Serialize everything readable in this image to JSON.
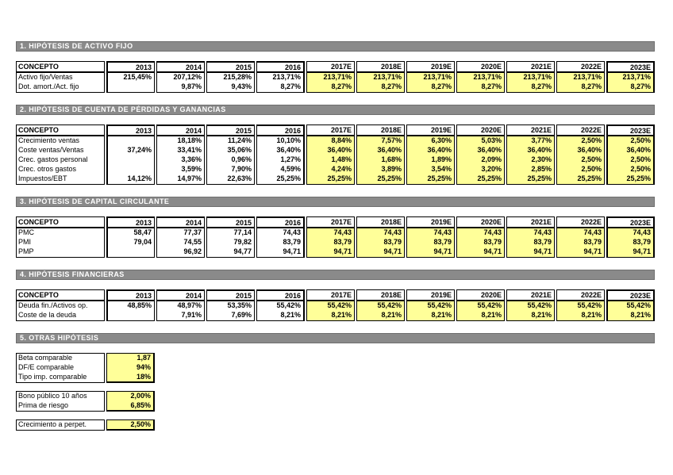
{
  "colors": {
    "estimate_bg": "#ffff99",
    "section_bar_bg": "#8a8a8a",
    "section_bar_text": "#ffffff",
    "grid_border": "#000000"
  },
  "columns": {
    "concept": "CONCEPTO",
    "years": [
      "2013",
      "2014",
      "2015",
      "2016",
      "2017E",
      "2018E",
      "2019E",
      "2020E",
      "2021E",
      "2022E",
      "2023E"
    ]
  },
  "sections": [
    {
      "title": "1. HIPÓTESIS DE ACTIVO FIJO",
      "rows": [
        {
          "label": "Activo fijo/Ventas",
          "values": [
            "215,45%",
            "207,12%",
            "215,28%",
            "213,71%",
            "213,71%",
            "213,71%",
            "213,71%",
            "213,71%",
            "213,71%",
            "213,71%",
            "213,71%"
          ]
        },
        {
          "label": "Dot. amort./Act. fijo",
          "values": [
            "",
            "9,87%",
            "9,43%",
            "8,27%",
            "8,27%",
            "8,27%",
            "8,27%",
            "8,27%",
            "8,27%",
            "8,27%",
            "8,27%"
          ]
        }
      ]
    },
    {
      "title": "2. HIPÓTESIS DE CUENTA DE PÉRDIDAS Y GANANCIAS",
      "rows": [
        {
          "label": "Crecimiento ventas",
          "values": [
            "",
            "18,18%",
            "11,24%",
            "10,10%",
            "8,84%",
            "7,57%",
            "6,30%",
            "5,03%",
            "3,77%",
            "2,50%",
            "2,50%"
          ]
        },
        {
          "label": "Coste ventas/Ventas",
          "values": [
            "37,24%",
            "33,41%",
            "35,06%",
            "36,40%",
            "36,40%",
            "36,40%",
            "36,40%",
            "36,40%",
            "36,40%",
            "36,40%",
            "36,40%"
          ]
        },
        {
          "label": "Crec. gastos personal",
          "values": [
            "",
            "3,36%",
            "0,96%",
            "1,27%",
            "1,48%",
            "1,68%",
            "1,89%",
            "2,09%",
            "2,30%",
            "2,50%",
            "2,50%"
          ]
        },
        {
          "label": "Crec. otros gastos",
          "values": [
            "",
            "3,59%",
            "7,90%",
            "4,59%",
            "4,24%",
            "3,89%",
            "3,54%",
            "3,20%",
            "2,85%",
            "2,50%",
            "2,50%"
          ]
        },
        {
          "label": "Impuestos/EBT",
          "values": [
            "14,12%",
            "14,97%",
            "22,63%",
            "25,25%",
            "25,25%",
            "25,25%",
            "25,25%",
            "25,25%",
            "25,25%",
            "25,25%",
            "25,25%"
          ]
        }
      ]
    },
    {
      "title": "3. HIPÓTESIS DE CAPITAL CIRCULANTE",
      "rows": [
        {
          "label": "PMC",
          "values": [
            "58,47",
            "77,37",
            "77,14",
            "74,43",
            "74,43",
            "74,43",
            "74,43",
            "74,43",
            "74,43",
            "74,43",
            "74,43"
          ]
        },
        {
          "label": "PMI",
          "values": [
            "79,04",
            "74,55",
            "79,82",
            "83,79",
            "83,79",
            "83,79",
            "83,79",
            "83,79",
            "83,79",
            "83,79",
            "83,79"
          ]
        },
        {
          "label": "PMP",
          "values": [
            "",
            "96,92",
            "94,77",
            "94,71",
            "94,71",
            "94,71",
            "94,71",
            "94,71",
            "94,71",
            "94,71",
            "94,71"
          ]
        }
      ]
    },
    {
      "title": "4. HIPÓTESIS FINANCIERAS",
      "rows": [
        {
          "label": "Deuda fin./Activos op.",
          "values": [
            "48,85%",
            "48,97%",
            "53,35%",
            "55,42%",
            "55,42%",
            "55,42%",
            "55,42%",
            "55,42%",
            "55,42%",
            "55,42%",
            "55,42%"
          ]
        },
        {
          "label": "Coste de la deuda",
          "values": [
            "",
            "7,91%",
            "7,69%",
            "8,21%",
            "8,21%",
            "8,21%",
            "8,21%",
            "8,21%",
            "8,21%",
            "8,21%",
            "8,21%"
          ]
        }
      ]
    }
  ],
  "otras": {
    "title": "5. OTRAS HIPÓTESIS",
    "blocks": [
      {
        "rows": [
          {
            "label": "Beta comparable",
            "value": "1,87"
          },
          {
            "label": "DF/E comparable",
            "value": "94%"
          },
          {
            "label": "Tipo imp. comparable",
            "value": "18%"
          }
        ]
      },
      {
        "rows": [
          {
            "label": "Bono público 10 años",
            "value": "2,00%"
          },
          {
            "label": "Prima de riesgo",
            "value": "6,85%"
          }
        ]
      },
      {
        "rows": [
          {
            "label": "Crecimiento a perpet.",
            "value": "2,50%"
          }
        ]
      }
    ]
  }
}
